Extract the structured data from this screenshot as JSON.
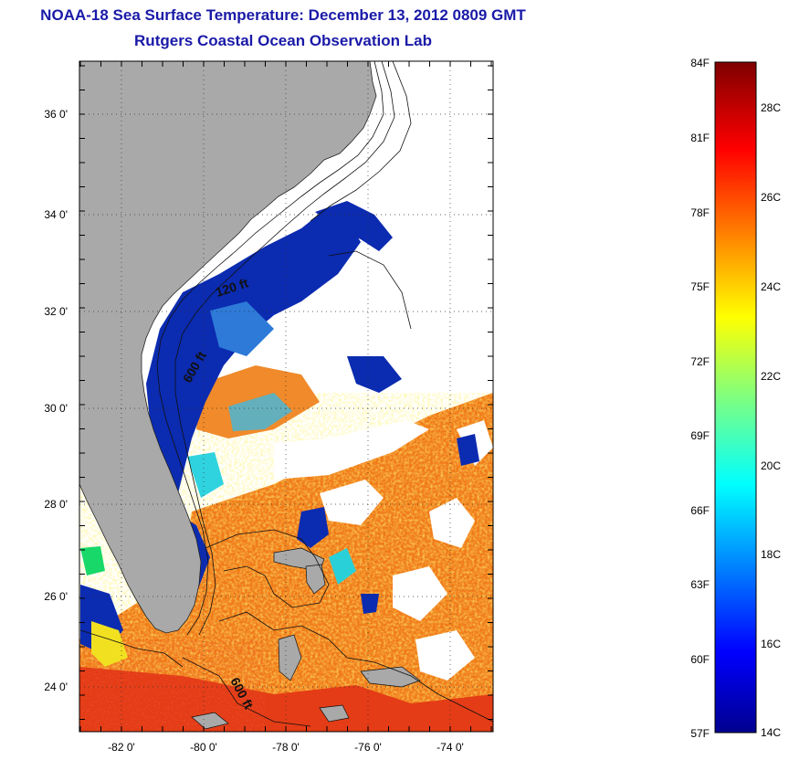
{
  "title": {
    "line1": "NOAA-18 Sea Surface Temperature:  December 13, 2012 0809 GMT",
    "line2": "Rutgers Coastal Ocean Observation Lab"
  },
  "map": {
    "lon_range": [
      -83.0,
      -73.0
    ],
    "lat_range": [
      23.0,
      37.1
    ],
    "lon_ticks": [
      "-82 0'",
      "-80 0'",
      "-78 0'",
      "-76 0'",
      "-74 0'"
    ],
    "lat_ticks": [
      "36 0'",
      "34 0'",
      "32 0'",
      "30 0'",
      "28 0'",
      "26 0'",
      "24 0'"
    ],
    "contour_labels": [
      "120 ft",
      "600 ft",
      "600 ft"
    ],
    "colors": {
      "land": "#a9a9a9",
      "cloud": "#ffffff",
      "cold_water": "#0b2bb0",
      "warm_water": "#f07a18",
      "hot_water": "#e43c16"
    }
  },
  "colorbar": {
    "fahrenheit_labels": [
      "84F",
      "81F",
      "78F",
      "75F",
      "72F",
      "69F",
      "66F",
      "63F",
      "60F",
      "57F"
    ],
    "celsius_labels": [
      "28C",
      "26C",
      "24C",
      "22C",
      "20C",
      "18C",
      "16C",
      "14C"
    ]
  }
}
